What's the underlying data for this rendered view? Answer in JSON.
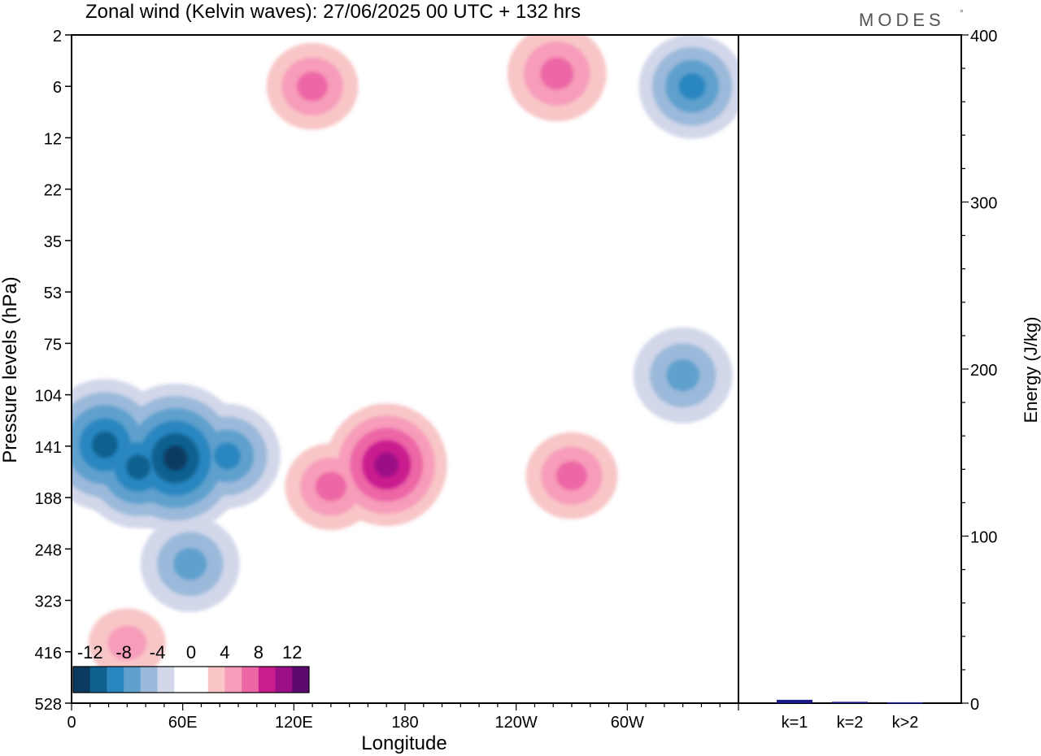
{
  "chart_data": [
    {
      "type": "heatmap",
      "title": "Zonal wind (Kelvin waves):  27/06/2025  00 UTC  + 132 hrs",
      "xlabel": "Longitude",
      "ylabel": "Pressure levels (hPa)",
      "x_ticks": [
        {
          "lon": 0,
          "label": "0"
        },
        {
          "lon": 60,
          "label": "60E"
        },
        {
          "lon": 120,
          "label": "120E"
        },
        {
          "lon": 180,
          "label": "180"
        },
        {
          "lon": 240,
          "label": "120W"
        },
        {
          "lon": 300,
          "label": "60W"
        }
      ],
      "xlim": [
        0,
        360
      ],
      "y_levels": [
        "2",
        "6",
        "12",
        "22",
        "35",
        "53",
        "75",
        "104",
        "141",
        "188",
        "248",
        "323",
        "416",
        "528"
      ],
      "colorbar": {
        "labels": [
          "-12",
          "-8",
          "-4",
          "0",
          "4",
          "8",
          "12"
        ],
        "values": [
          -14,
          -12,
          -10,
          -8,
          -6,
          -4,
          -2,
          0,
          2,
          4,
          6,
          8,
          10,
          12,
          14
        ],
        "colors": [
          "#0b3b60",
          "#10608f",
          "#2a86c0",
          "#5fa0cd",
          "#9bb9da",
          "#d2d7ea",
          "#ffffff",
          "#ffffff",
          "#f8c6c7",
          "#f79cba",
          "#ed66a5",
          "#c91d8f",
          "#9b0f86",
          "#5c0a6e"
        ]
      },
      "features": [
        {
          "lon": 18,
          "level": 140,
          "value": -10
        },
        {
          "lon": 36,
          "level": 160,
          "value": -9
        },
        {
          "lon": 56,
          "level": 152,
          "value": -12
        },
        {
          "lon": 84,
          "level": 150,
          "value": -7
        },
        {
          "lon": 64,
          "level": 270,
          "value": -6
        },
        {
          "lon": 170,
          "level": 158,
          "value": 9
        },
        {
          "lon": 140,
          "level": 178,
          "value": 5
        },
        {
          "lon": 270,
          "level": 168,
          "value": 5
        },
        {
          "lon": 330,
          "level": 93,
          "value": -6
        },
        {
          "lon": 335,
          "level": 6,
          "value": -7
        },
        {
          "lon": 130,
          "level": 6,
          "value": 5
        },
        {
          "lon": 262,
          "level": 5,
          "value": 6
        },
        {
          "lon": 30,
          "level": 400,
          "value": 3
        }
      ]
    },
    {
      "type": "bar",
      "ylabel": "Energy (J/kg)",
      "categories": [
        "k=1",
        "k=2",
        "k>2"
      ],
      "values": [
        2,
        0.8,
        0.5
      ],
      "ylim": [
        0,
        400
      ],
      "y_ticks": [
        0,
        100,
        200,
        300,
        400
      ],
      "bar_color": "#1a1a8a"
    }
  ],
  "branding": {
    "text": "MODES",
    "mark": "°"
  }
}
